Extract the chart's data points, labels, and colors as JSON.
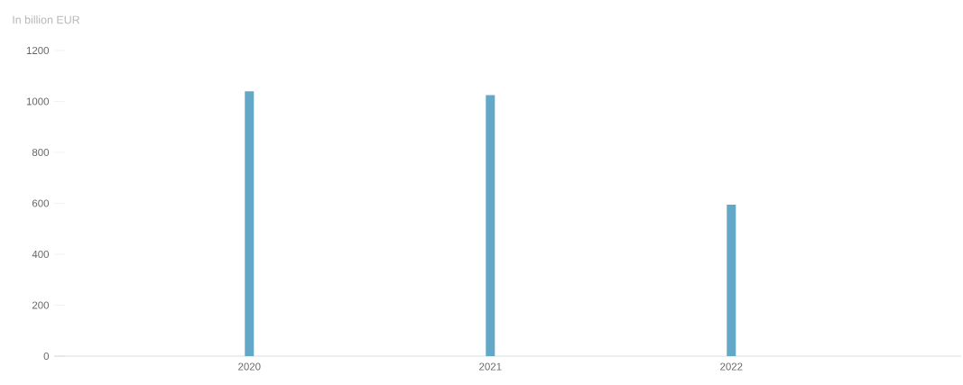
{
  "chart_data": {
    "type": "bar",
    "ylabel": "In billion EUR",
    "categories": [
      "2020",
      "2021",
      "2022"
    ],
    "values": [
      1040,
      1025,
      595
    ],
    "color": "#64a8c8",
    "ylim": [
      0,
      1200
    ],
    "yticks": [
      0,
      200,
      400,
      600,
      800,
      1000,
      1200
    ]
  }
}
